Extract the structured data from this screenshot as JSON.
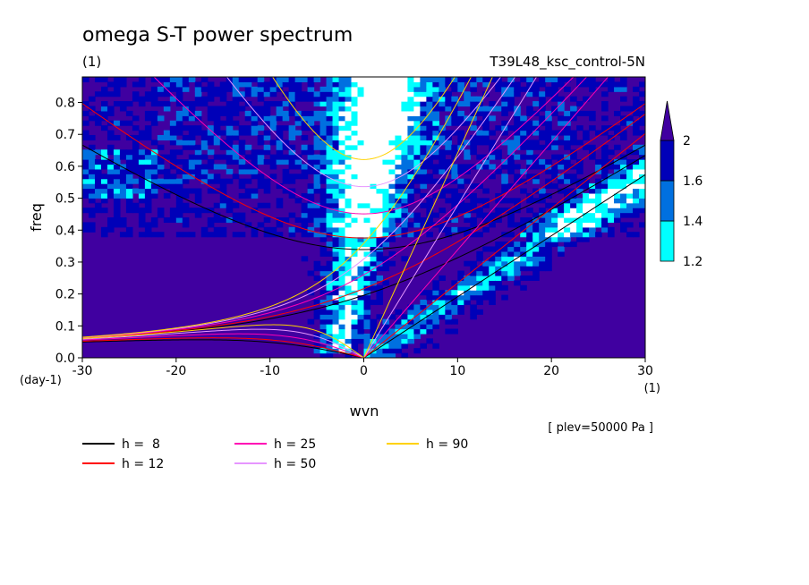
{
  "header": {
    "title": "omega S-T power spectrum",
    "units_left": "(1)",
    "run_name": "T39L48_ksc_control-5N"
  },
  "chart_data": {
    "type": "heatmap",
    "title": "omega S-T power spectrum",
    "xlabel": "wvn",
    "ylabel": "freq",
    "x_units": "(1)",
    "y_units": "(day-1)",
    "xlim": [
      -30,
      30
    ],
    "ylim": [
      0,
      0.88
    ],
    "x_ticks": [
      -30,
      -20,
      -10,
      0,
      10,
      20,
      30
    ],
    "x_tick_labels": [
      "-30",
      "-20",
      "-10",
      "0",
      "10",
      "20",
      "30"
    ],
    "y_ticks": [
      0.0,
      0.1,
      0.2,
      0.3,
      0.4,
      0.5,
      0.6,
      0.7,
      0.8
    ],
    "y_tick_labels": [
      "0.0",
      "0.1",
      "0.2",
      "0.3",
      "0.4",
      "0.5",
      "0.6",
      "0.7",
      "0.8"
    ],
    "colorbar": {
      "levels": [
        1.2,
        1.4,
        1.6,
        2
      ],
      "labels": [
        "1.2",
        "1.4",
        "1.6",
        "2"
      ],
      "colors": [
        "#ffffff",
        "#00ffff",
        "#0070e0",
        "#0000b8",
        "#4000a0"
      ],
      "background": "#4000a0"
    },
    "dispersion_curves": [
      {
        "label": "h =  8",
        "h": 8,
        "color": "#000000"
      },
      {
        "label": "h = 12",
        "h": 12,
        "color": "#ff0000"
      },
      {
        "label": "h = 25",
        "h": 25,
        "color": "#ff00b4"
      },
      {
        "label": "h = 50",
        "h": 50,
        "color": "#e696ff"
      },
      {
        "label": "h = 90",
        "h": 90,
        "color": "#ffd200"
      }
    ],
    "annotation": "[ plev=50000 Pa ]"
  }
}
